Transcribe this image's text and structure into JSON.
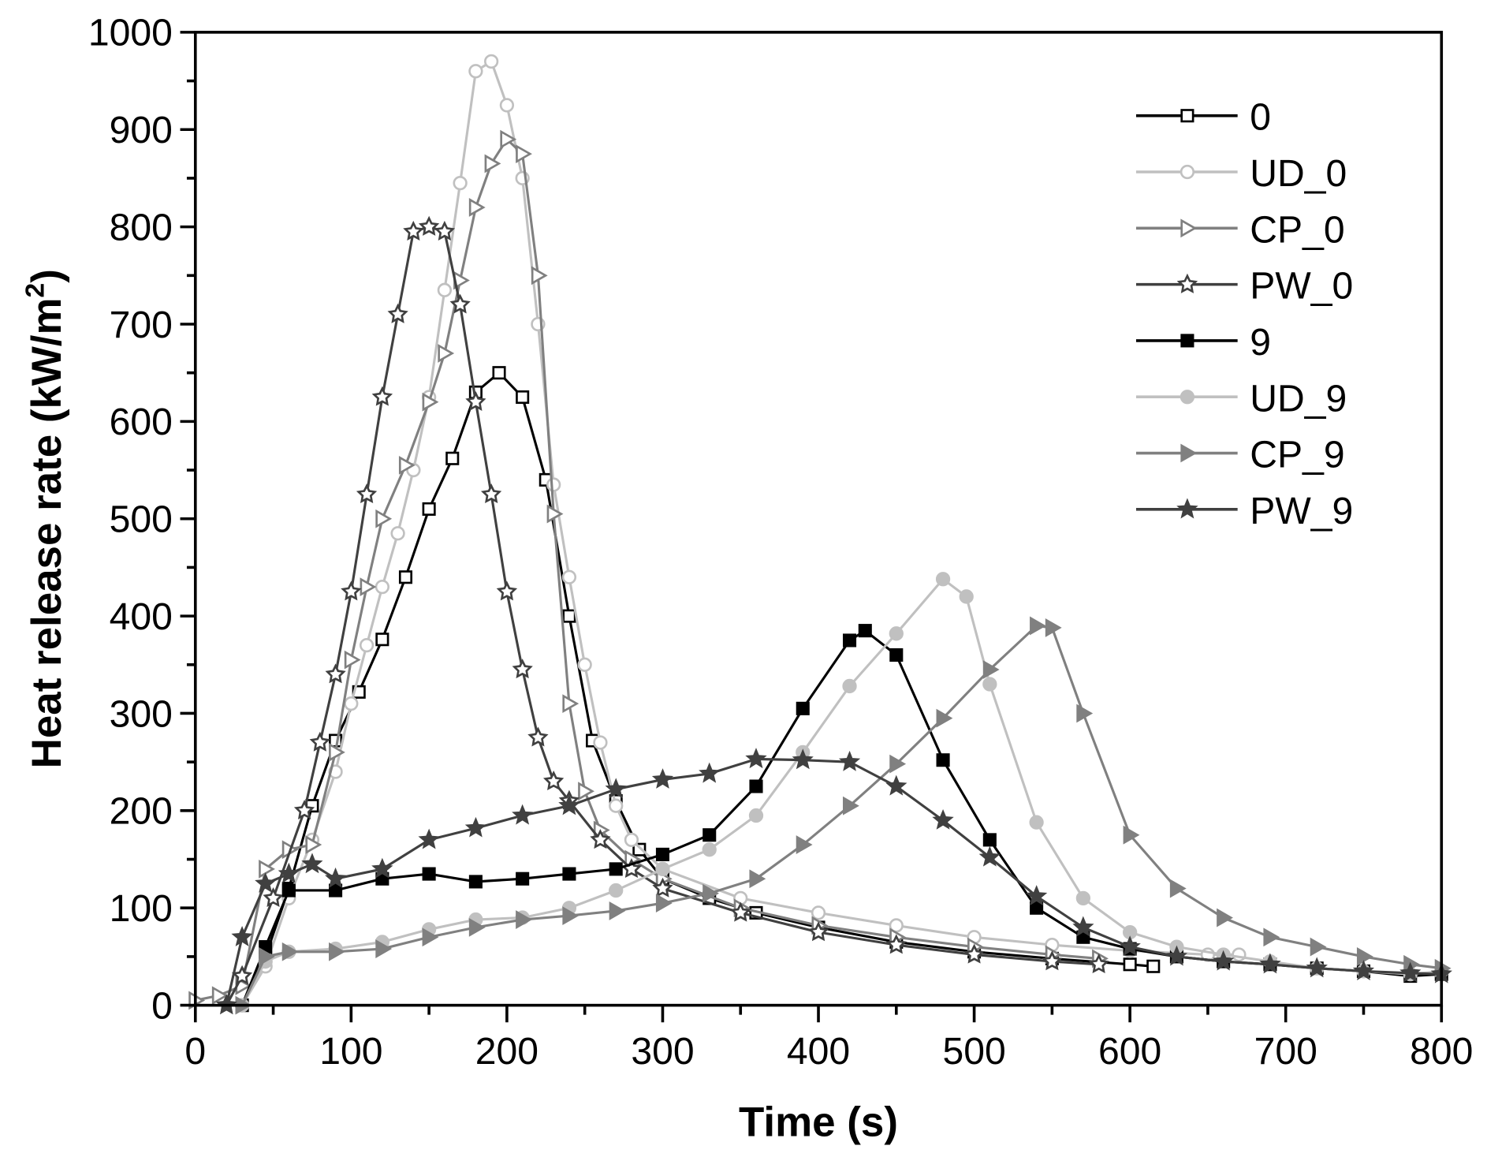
{
  "chart_data": {
    "type": "line",
    "title": "",
    "xlabel": "Time (s)",
    "ylabel": "Heat release rate (kW/m",
    "ylabel_sup": "2",
    "ylabel_close": ")",
    "xlim": [
      0,
      800
    ],
    "ylim": [
      0,
      1000
    ],
    "xticks": [
      0,
      100,
      200,
      300,
      400,
      500,
      600,
      700,
      800
    ],
    "yticks": [
      0,
      100,
      200,
      300,
      400,
      500,
      600,
      700,
      800,
      900,
      1000
    ],
    "grid": false,
    "legend_position": "top-right",
    "series": [
      {
        "name": "0",
        "color": "#000000",
        "marker": "square",
        "filled": false,
        "x": [
          30,
          45,
          60,
          75,
          90,
          105,
          120,
          135,
          150,
          165,
          180,
          195,
          210,
          225,
          240,
          255,
          270,
          285,
          300,
          330,
          360,
          400,
          450,
          500,
          550,
          600,
          615
        ],
        "y": [
          0,
          50,
          120,
          205,
          272,
          322,
          376,
          440,
          510,
          562,
          630,
          650,
          625,
          540,
          400,
          272,
          210,
          160,
          130,
          110,
          95,
          80,
          65,
          55,
          48,
          42,
          40
        ]
      },
      {
        "name": "UD_0",
        "color": "#c0c0c0",
        "marker": "circle",
        "filled": false,
        "x": [
          30,
          45,
          60,
          75,
          90,
          100,
          110,
          120,
          130,
          140,
          150,
          160,
          170,
          180,
          190,
          200,
          210,
          220,
          230,
          240,
          250,
          260,
          270,
          280,
          300,
          350,
          400,
          450,
          500,
          550,
          600,
          650,
          670
        ],
        "y": [
          0,
          40,
          110,
          170,
          240,
          310,
          370,
          430,
          485,
          550,
          625,
          735,
          845,
          960,
          970,
          925,
          850,
          700,
          535,
          440,
          350,
          270,
          205,
          170,
          140,
          110,
          95,
          82,
          70,
          62,
          56,
          52,
          52
        ]
      },
      {
        "name": "CP_0",
        "color": "#808080",
        "marker": "triangle",
        "filled": false,
        "x": [
          0,
          15,
          30,
          45,
          60,
          75,
          90,
          100,
          110,
          120,
          135,
          150,
          160,
          170,
          180,
          190,
          200,
          210,
          220,
          230,
          240,
          250,
          260,
          280,
          300,
          350,
          400,
          450,
          500,
          550,
          580
        ],
        "y": [
          5,
          10,
          20,
          140,
          160,
          165,
          260,
          355,
          430,
          500,
          555,
          620,
          670,
          745,
          820,
          865,
          890,
          875,
          750,
          505,
          310,
          220,
          180,
          150,
          130,
          100,
          82,
          70,
          60,
          52,
          48
        ]
      },
      {
        "name": "PW_0",
        "color": "#404040",
        "marker": "star",
        "filled": false,
        "x": [
          20,
          30,
          50,
          70,
          80,
          90,
          100,
          110,
          120,
          130,
          140,
          150,
          160,
          170,
          180,
          190,
          200,
          210,
          220,
          230,
          240,
          260,
          280,
          300,
          350,
          400,
          450,
          500,
          550,
          580
        ],
        "y": [
          0,
          30,
          110,
          200,
          270,
          340,
          425,
          525,
          625,
          710,
          795,
          800,
          795,
          720,
          620,
          525,
          425,
          345,
          275,
          230,
          210,
          170,
          140,
          120,
          95,
          75,
          62,
          52,
          45,
          42
        ]
      },
      {
        "name": "9",
        "color": "#000000",
        "marker": "square",
        "filled": true,
        "x": [
          30,
          45,
          60,
          90,
          120,
          150,
          180,
          210,
          240,
          270,
          300,
          330,
          360,
          390,
          420,
          430,
          450,
          480,
          510,
          540,
          570,
          600,
          630,
          660,
          690,
          720,
          750,
          780,
          800
        ],
        "y": [
          0,
          60,
          118,
          118,
          130,
          135,
          127,
          130,
          135,
          140,
          155,
          175,
          225,
          305,
          375,
          385,
          360,
          252,
          170,
          100,
          70,
          58,
          50,
          45,
          42,
          38,
          35,
          30,
          32
        ]
      },
      {
        "name": "UD_9",
        "color": "#c0c0c0",
        "marker": "circle",
        "filled": true,
        "x": [
          30,
          45,
          60,
          90,
          120,
          150,
          180,
          210,
          240,
          270,
          300,
          330,
          360,
          390,
          420,
          450,
          480,
          495,
          510,
          540,
          570,
          600,
          630,
          660,
          690,
          720,
          750,
          780,
          800
        ],
        "y": [
          0,
          45,
          55,
          58,
          65,
          78,
          88,
          90,
          100,
          118,
          140,
          160,
          195,
          260,
          328,
          382,
          438,
          420,
          330,
          188,
          110,
          75,
          60,
          52,
          45,
          38,
          35,
          32,
          35
        ]
      },
      {
        "name": "CP_9",
        "color": "#808080",
        "marker": "triangle",
        "filled": true,
        "x": [
          30,
          45,
          60,
          90,
          120,
          150,
          180,
          210,
          240,
          270,
          300,
          330,
          360,
          390,
          420,
          450,
          480,
          510,
          540,
          550,
          570,
          600,
          630,
          660,
          690,
          720,
          750,
          780,
          800
        ],
        "y": [
          0,
          50,
          55,
          55,
          58,
          70,
          80,
          88,
          92,
          97,
          105,
          115,
          130,
          165,
          205,
          248,
          295,
          345,
          390,
          388,
          300,
          175,
          120,
          90,
          70,
          60,
          50,
          42,
          38
        ]
      },
      {
        "name": "PW_9",
        "color": "#404040",
        "marker": "star",
        "filled": true,
        "x": [
          20,
          30,
          45,
          60,
          75,
          90,
          120,
          150,
          180,
          210,
          240,
          270,
          300,
          330,
          360,
          390,
          420,
          450,
          480,
          510,
          540,
          570,
          600,
          630,
          660,
          690,
          720,
          750,
          780,
          800
        ],
        "y": [
          0,
          70,
          125,
          135,
          145,
          130,
          140,
          170,
          182,
          195,
          205,
          222,
          232,
          238,
          253,
          252,
          250,
          225,
          190,
          152,
          112,
          80,
          60,
          50,
          45,
          42,
          38,
          35,
          33,
          32
        ]
      }
    ]
  }
}
